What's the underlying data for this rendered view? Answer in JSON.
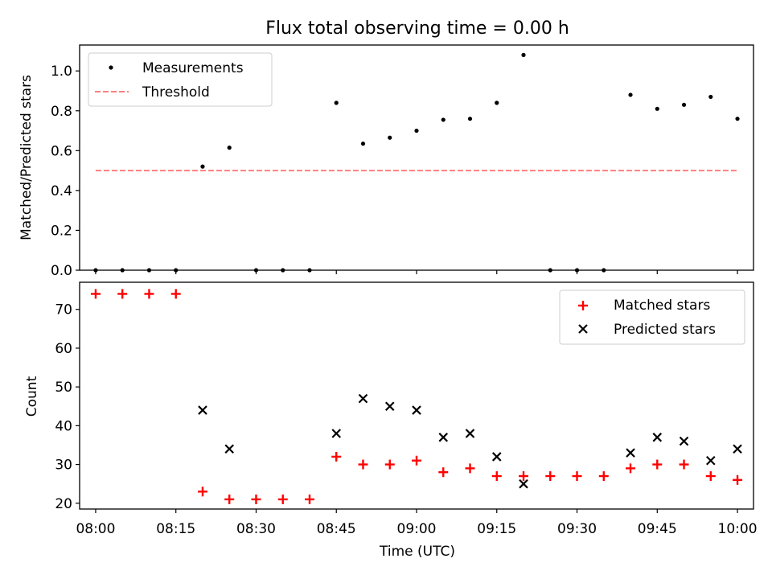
{
  "colors": {
    "measurements": "#000000",
    "threshold": "#ff7f7f",
    "matched": "#ff0000",
    "predicted": "#000000"
  },
  "chart_data": [
    {
      "type": "scatter",
      "title": "Flux total observing time = 0.00 h",
      "xlabel": "",
      "ylabel": "Matched/Predicted stars",
      "xlim": [
        "07:57",
        "10:03"
      ],
      "ylim": [
        0,
        1.13
      ],
      "yticks": [
        "0.0",
        "0.2",
        "0.4",
        "0.6",
        "0.8",
        "1.0"
      ],
      "legend_position": "top-left",
      "legend": [
        "Measurements",
        "Threshold"
      ],
      "series": [
        {
          "name": "Measurements",
          "marker": "dot",
          "x": [
            "08:00",
            "08:05",
            "08:10",
            "08:15",
            "08:20",
            "08:25",
            "08:30",
            "08:35",
            "08:40",
            "08:45",
            "08:50",
            "08:55",
            "09:00",
            "09:05",
            "09:10",
            "09:15",
            "09:20",
            "09:25",
            "09:30",
            "09:35",
            "09:40",
            "09:45",
            "09:50",
            "09:55",
            "10:00"
          ],
          "y": [
            0,
            0,
            0,
            0,
            0.52,
            0.615,
            0,
            0,
            0,
            0.84,
            0.635,
            0.665,
            0.7,
            0.755,
            0.76,
            0.84,
            1.08,
            0,
            0,
            0,
            0.88,
            0.81,
            0.83,
            0.87,
            0.76
          ]
        },
        {
          "name": "Threshold",
          "line": "dashed",
          "x": [
            "08:00",
            "10:00"
          ],
          "y": [
            0.5,
            0.5
          ]
        }
      ]
    },
    {
      "type": "scatter",
      "title": "",
      "xlabel": "Time (UTC)",
      "ylabel": "Count",
      "xlim": [
        "07:57",
        "10:03"
      ],
      "ylim": [
        18.5,
        77
      ],
      "xticks": [
        "08:00",
        "08:15",
        "08:30",
        "08:45",
        "09:00",
        "09:15",
        "09:30",
        "09:45",
        "10:00"
      ],
      "yticks": [
        "20",
        "30",
        "40",
        "50",
        "60",
        "70"
      ],
      "legend_position": "top-right",
      "legend": [
        "Matched stars",
        "Predicted stars"
      ],
      "series": [
        {
          "name": "Matched stars",
          "marker": "plus",
          "x": [
            "08:00",
            "08:05",
            "08:10",
            "08:15",
            "08:20",
            "08:25",
            "08:30",
            "08:35",
            "08:40",
            "08:45",
            "08:50",
            "08:55",
            "09:00",
            "09:05",
            "09:10",
            "09:15",
            "09:20",
            "09:25",
            "09:30",
            "09:35",
            "09:40",
            "09:45",
            "09:50",
            "09:55",
            "10:00"
          ],
          "y": [
            74,
            74,
            74,
            74,
            23,
            21,
            21,
            21,
            21,
            32,
            30,
            30,
            31,
            28,
            29,
            27,
            27,
            27,
            27,
            27,
            29,
            30,
            30,
            27,
            26
          ]
        },
        {
          "name": "Predicted stars",
          "marker": "x",
          "x": [
            "08:20",
            "08:25",
            "08:45",
            "08:50",
            "08:55",
            "09:00",
            "09:05",
            "09:10",
            "09:15",
            "09:20",
            "09:40",
            "09:45",
            "09:50",
            "09:55",
            "10:00"
          ],
          "y": [
            44,
            34,
            38,
            47,
            45,
            44,
            37,
            38,
            32,
            25,
            33,
            37,
            36,
            31,
            34
          ]
        }
      ]
    }
  ]
}
